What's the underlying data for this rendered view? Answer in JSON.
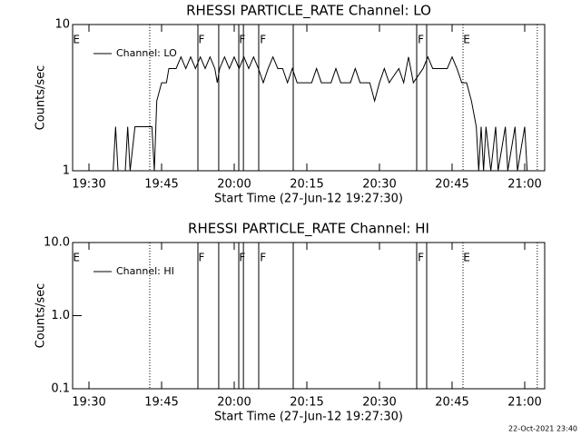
{
  "chart_data": [
    {
      "type": "line",
      "title": "RHESSI PARTICLE_RATE Channel: LO",
      "xlabel": "Start Time (27-Jun-12 19:27:30)",
      "ylabel": "Counts/sec",
      "xlim": [
        26.625,
        124.125
      ],
      "xticks": [
        {
          "value": 30,
          "label": "19:30"
        },
        {
          "value": 45,
          "label": "19:45"
        },
        {
          "value": 60,
          "label": "20:00"
        },
        {
          "value": 75,
          "label": "20:15"
        },
        {
          "value": 90,
          "label": "20:30"
        },
        {
          "value": 105,
          "label": "20:45"
        },
        {
          "value": 120,
          "label": "21:00"
        }
      ],
      "ylim": [
        1,
        10
      ],
      "yticks": [
        1,
        10
      ],
      "log_y": true,
      "series": [
        {
          "name": "Channel: LO",
          "color": "#000000",
          "x": [
            33,
            35,
            35.5,
            36,
            37.5,
            38,
            38.5,
            39.5,
            43,
            43.5,
            44,
            45,
            46,
            46.5,
            48,
            49,
            50,
            51,
            52,
            53,
            54,
            55,
            56,
            56.5,
            57,
            58,
            59,
            60,
            61,
            62,
            63,
            64,
            65,
            66,
            67,
            68,
            69,
            70,
            71,
            72,
            73,
            76,
            77,
            78,
            80,
            81,
            82,
            84,
            85,
            86,
            88,
            89,
            90,
            91,
            92,
            94,
            95,
            96,
            97,
            99,
            100,
            101,
            104,
            105,
            106,
            107,
            108,
            109,
            110,
            110.5,
            111,
            111.5,
            112,
            113,
            114,
            114.5,
            116,
            116.5,
            118,
            118.5,
            120,
            120.5
          ],
          "values": [
            1,
            1,
            2,
            1,
            1,
            2,
            1,
            2,
            2,
            1,
            3,
            4,
            4,
            5,
            5,
            6,
            5,
            6,
            5,
            6,
            5,
            6,
            5,
            4,
            5,
            6,
            5,
            6,
            5,
            6,
            5,
            6,
            5,
            4,
            5,
            6,
            5,
            5,
            4,
            5,
            4,
            4,
            5,
            4,
            4,
            5,
            4,
            4,
            5,
            4,
            4,
            3,
            4,
            5,
            4,
            5,
            4,
            6,
            4,
            5,
            6,
            5,
            5,
            6,
            5,
            4,
            4,
            3,
            2,
            1,
            2,
            1,
            2,
            1,
            2,
            1,
            2,
            1,
            2,
            1,
            2,
            1
          ]
        }
      ],
      "lines": [
        {
          "x": 42.56,
          "style": "dotted"
        },
        {
          "x": 52.5,
          "style": "solid"
        },
        {
          "x": 56.8,
          "style": "solid"
        },
        {
          "x": 60.94,
          "style": "solid"
        },
        {
          "x": 61.9,
          "style": "solid"
        },
        {
          "x": 65.06,
          "style": "solid"
        },
        {
          "x": 72.19,
          "style": "solid"
        },
        {
          "x": 97.69,
          "style": "solid"
        },
        {
          "x": 99.75,
          "style": "solid"
        },
        {
          "x": 107.25,
          "style": "dotted"
        },
        {
          "x": 122.6,
          "style": "dotted"
        }
      ],
      "flags": [
        {
          "x": 26.7,
          "label": "E"
        },
        {
          "x": 52.6,
          "label": "F"
        },
        {
          "x": 61.0,
          "label": "F"
        },
        {
          "x": 65.3,
          "label": "F"
        },
        {
          "x": 97.9,
          "label": "F"
        },
        {
          "x": 107.3,
          "label": "E"
        }
      ]
    },
    {
      "type": "line",
      "title": "RHESSI PARTICLE_RATE Channel: HI",
      "xlabel": "Start Time (27-Jun-12 19:27:30)",
      "ylabel": "Counts/sec",
      "xlim": [
        26.625,
        124.125
      ],
      "xticks": [
        {
          "value": 30,
          "label": "19:30"
        },
        {
          "value": 45,
          "label": "19:45"
        },
        {
          "value": 60,
          "label": "20:00"
        },
        {
          "value": 75,
          "label": "20:15"
        },
        {
          "value": 90,
          "label": "20:30"
        },
        {
          "value": 105,
          "label": "20:45"
        },
        {
          "value": 120,
          "label": "21:00"
        }
      ],
      "ylim": [
        0.1,
        10
      ],
      "yticks": [
        0.1,
        {
          "value": 1,
          "label": "1.0"
        },
        {
          "value": 10,
          "label": "10.0"
        }
      ],
      "log_y": true,
      "series": [
        {
          "name": "Channel: HI",
          "color": "#000000",
          "x": [],
          "values": []
        }
      ],
      "lines": [
        {
          "x": 42.56,
          "style": "dotted"
        },
        {
          "x": 52.5,
          "style": "solid"
        },
        {
          "x": 56.8,
          "style": "solid"
        },
        {
          "x": 60.94,
          "style": "solid"
        },
        {
          "x": 61.9,
          "style": "solid"
        },
        {
          "x": 65.06,
          "style": "solid"
        },
        {
          "x": 72.19,
          "style": "solid"
        },
        {
          "x": 97.69,
          "style": "solid"
        },
        {
          "x": 99.75,
          "style": "solid"
        },
        {
          "x": 107.25,
          "style": "dotted"
        },
        {
          "x": 122.6,
          "style": "dotted"
        }
      ],
      "flags": [
        {
          "x": 26.7,
          "label": "E"
        },
        {
          "x": 52.6,
          "label": "F"
        },
        {
          "x": 61.0,
          "label": "F"
        },
        {
          "x": 65.3,
          "label": "F"
        },
        {
          "x": 97.9,
          "label": "F"
        },
        {
          "x": 107.3,
          "label": "E"
        }
      ]
    }
  ],
  "footer": "22-Oct-2021 23:40"
}
